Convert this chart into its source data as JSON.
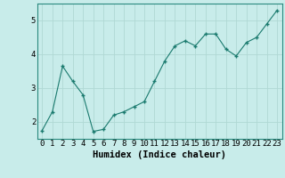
{
  "x": [
    0,
    1,
    2,
    3,
    4,
    5,
    6,
    7,
    8,
    9,
    10,
    11,
    12,
    13,
    14,
    15,
    16,
    17,
    18,
    19,
    20,
    21,
    22,
    23
  ],
  "y": [
    1.75,
    2.3,
    3.65,
    3.2,
    2.8,
    1.72,
    1.78,
    2.2,
    2.3,
    2.45,
    2.6,
    3.2,
    3.8,
    4.25,
    4.4,
    4.25,
    4.6,
    4.6,
    4.15,
    3.95,
    4.35,
    4.5,
    4.9,
    5.3
  ],
  "line_color": "#1a7a6e",
  "bg_color": "#c8ecea",
  "grid_color": "#b0d8d4",
  "xlabel": "Humidex (Indice chaleur)",
  "ylim": [
    1.5,
    5.5
  ],
  "xlim": [
    -0.5,
    23.5
  ],
  "yticks": [
    2,
    3,
    4,
    5
  ],
  "xticks": [
    0,
    1,
    2,
    3,
    4,
    5,
    6,
    7,
    8,
    9,
    10,
    11,
    12,
    13,
    14,
    15,
    16,
    17,
    18,
    19,
    20,
    21,
    22,
    23
  ],
  "tick_fontsize": 6.5,
  "xlabel_fontsize": 7.5
}
